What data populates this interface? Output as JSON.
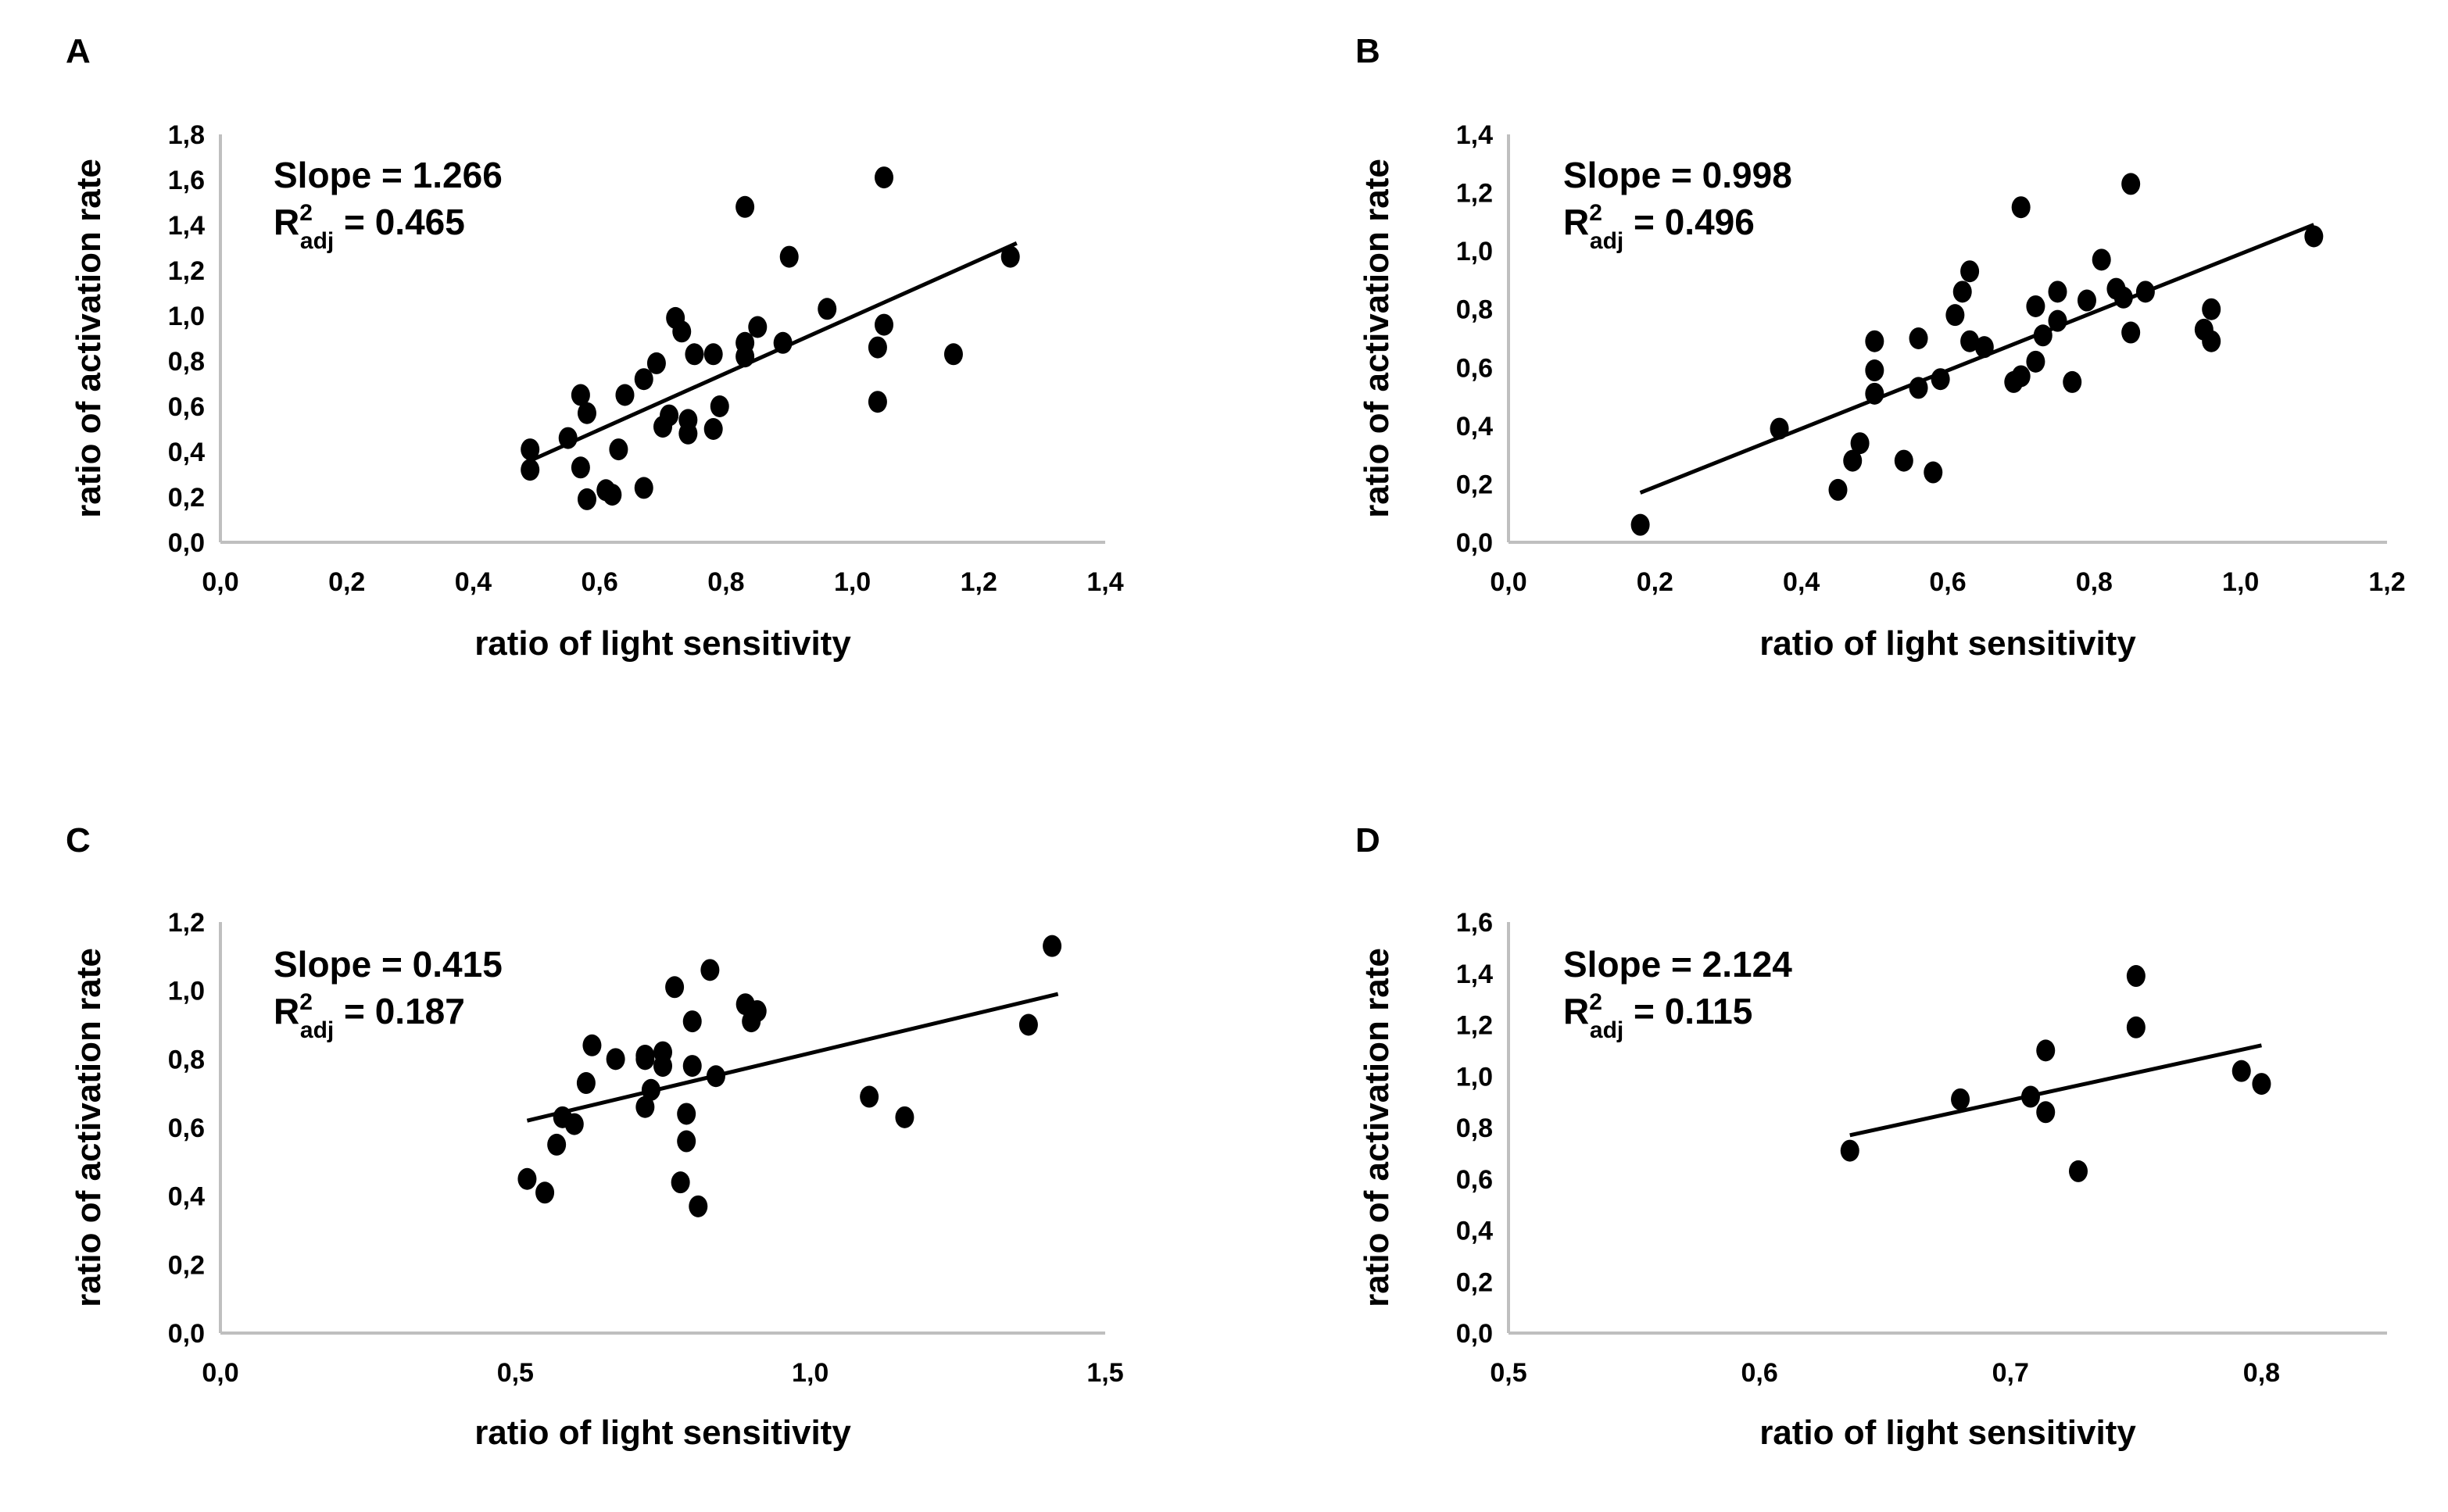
{
  "figure": {
    "panels": [
      "A",
      "B",
      "C",
      "D"
    ]
  },
  "chart_data": [
    {
      "panel": "A",
      "type": "scatter",
      "title": "",
      "xlabel": "ratio of light sensitivity",
      "ylabel": "ratio of activation rate",
      "xlim": [
        0,
        1.4
      ],
      "ylim": [
        0,
        1.8
      ],
      "xticks": [
        0,
        0.2,
        0.4,
        0.6,
        0.8,
        1.0,
        1.2,
        1.4
      ],
      "yticks": [
        0,
        0.2,
        0.4,
        0.6,
        0.8,
        1.0,
        1.2,
        1.4,
        1.6,
        1.8
      ],
      "xtick_labels": [
        "0,0",
        "0,2",
        "0,4",
        "0,6",
        "0,8",
        "1,0",
        "1,2",
        "1,4"
      ],
      "ytick_labels": [
        "0,0",
        "0,2",
        "0,4",
        "0,6",
        "0,8",
        "1,0",
        "1,2",
        "1,4",
        "1,6",
        "1,8"
      ],
      "annotation": {
        "slope_label": "Slope = 1.266",
        "r2_prefix": "R",
        "r2_sup": "2",
        "r2_sub": "adj",
        "r2_value": " = 0.465"
      },
      "slope": 1.266,
      "r2_adj": 0.465,
      "fit_line": {
        "x": [
          0.49,
          1.26
        ],
        "y": [
          0.36,
          1.32
        ]
      },
      "grid": false,
      "points": [
        [
          0.49,
          0.41
        ],
        [
          0.49,
          0.32
        ],
        [
          0.55,
          0.46
        ],
        [
          0.57,
          0.65
        ],
        [
          0.58,
          0.57
        ],
        [
          0.57,
          0.33
        ],
        [
          0.58,
          0.19
        ],
        [
          0.61,
          0.23
        ],
        [
          0.62,
          0.21
        ],
        [
          0.63,
          0.41
        ],
        [
          0.64,
          0.65
        ],
        [
          0.67,
          0.24
        ],
        [
          0.67,
          0.72
        ],
        [
          0.69,
          0.79
        ],
        [
          0.7,
          0.51
        ],
        [
          0.71,
          0.56
        ],
        [
          0.72,
          0.99
        ],
        [
          0.73,
          0.93
        ],
        [
          0.74,
          0.54
        ],
        [
          0.74,
          0.48
        ],
        [
          0.75,
          0.83
        ],
        [
          0.78,
          0.83
        ],
        [
          0.78,
          0.5
        ],
        [
          0.79,
          0.6
        ],
        [
          0.83,
          1.48
        ],
        [
          0.83,
          0.88
        ],
        [
          0.83,
          0.82
        ],
        [
          0.85,
          0.95
        ],
        [
          0.89,
          0.88
        ],
        [
          0.9,
          1.26
        ],
        [
          0.96,
          1.03
        ],
        [
          1.04,
          0.86
        ],
        [
          1.05,
          0.96
        ],
        [
          1.04,
          0.62
        ],
        [
          1.05,
          1.61
        ],
        [
          1.16,
          0.83
        ],
        [
          1.25,
          1.26
        ]
      ]
    },
    {
      "panel": "B",
      "type": "scatter",
      "title": "",
      "xlabel": "ratio of light sensitivity",
      "ylabel": "ratio of activation rate",
      "xlim": [
        0,
        1.2
      ],
      "ylim": [
        0,
        1.4
      ],
      "xticks": [
        0,
        0.2,
        0.4,
        0.6,
        0.8,
        1.0,
        1.2
      ],
      "yticks": [
        0,
        0.2,
        0.4,
        0.6,
        0.8,
        1.0,
        1.2,
        1.4
      ],
      "xtick_labels": [
        "0,0",
        "0,2",
        "0,4",
        "0,6",
        "0,8",
        "1,0",
        "1,2"
      ],
      "ytick_labels": [
        "0,0",
        "0,2",
        "0,4",
        "0,6",
        "0,8",
        "1,0",
        "1,2",
        "1,4"
      ],
      "annotation": {
        "slope_label": "Slope = 0.998",
        "r2_prefix": "R",
        "r2_sup": "2",
        "r2_sub": "adj",
        "r2_value": " = 0.496"
      },
      "slope": 0.998,
      "r2_adj": 0.496,
      "fit_line": {
        "x": [
          0.18,
          1.1
        ],
        "y": [
          0.17,
          1.09
        ]
      },
      "grid": false,
      "points": [
        [
          0.18,
          0.06
        ],
        [
          0.37,
          0.39
        ],
        [
          0.45,
          0.18
        ],
        [
          0.47,
          0.28
        ],
        [
          0.48,
          0.34
        ],
        [
          0.5,
          0.69
        ],
        [
          0.5,
          0.59
        ],
        [
          0.5,
          0.51
        ],
        [
          0.54,
          0.28
        ],
        [
          0.56,
          0.7
        ],
        [
          0.56,
          0.53
        ],
        [
          0.58,
          0.24
        ],
        [
          0.59,
          0.56
        ],
        [
          0.61,
          0.78
        ],
        [
          0.62,
          0.86
        ],
        [
          0.63,
          0.69
        ],
        [
          0.63,
          0.93
        ],
        [
          0.65,
          0.67
        ],
        [
          0.69,
          0.55
        ],
        [
          0.7,
          1.15
        ],
        [
          0.7,
          0.57
        ],
        [
          0.72,
          0.81
        ],
        [
          0.72,
          0.62
        ],
        [
          0.73,
          0.71
        ],
        [
          0.75,
          0.86
        ],
        [
          0.75,
          0.76
        ],
        [
          0.77,
          0.55
        ],
        [
          0.79,
          0.83
        ],
        [
          0.81,
          0.97
        ],
        [
          0.83,
          0.87
        ],
        [
          0.84,
          0.84
        ],
        [
          0.85,
          1.23
        ],
        [
          0.85,
          0.72
        ],
        [
          0.87,
          0.86
        ],
        [
          0.96,
          0.8
        ],
        [
          0.95,
          0.73
        ],
        [
          0.96,
          0.69
        ],
        [
          1.1,
          1.05
        ]
      ]
    },
    {
      "panel": "C",
      "type": "scatter",
      "title": "",
      "xlabel": "ratio of light sensitivity",
      "ylabel": "ratio of activation rate",
      "xlim": [
        0,
        1.5
      ],
      "ylim": [
        0,
        1.2
      ],
      "xticks": [
        0,
        0.5,
        1.0,
        1.5
      ],
      "yticks": [
        0,
        0.2,
        0.4,
        0.6,
        0.8,
        1.0,
        1.2
      ],
      "xtick_labels": [
        "0,0",
        "0,5",
        "1,0",
        "1,5"
      ],
      "ytick_labels": [
        "0,0",
        "0,2",
        "0,4",
        "0,6",
        "0,8",
        "1,0",
        "1,2"
      ],
      "annotation": {
        "slope_label": "Slope = 0.415",
        "r2_prefix": "R",
        "r2_sup": "2",
        "r2_sub": "adj",
        "r2_value": "  = 0.187"
      },
      "slope": 0.415,
      "r2_adj": 0.187,
      "fit_line": {
        "x": [
          0.52,
          1.42
        ],
        "y": [
          0.62,
          0.99
        ]
      },
      "grid": false,
      "points": [
        [
          0.52,
          0.45
        ],
        [
          0.55,
          0.41
        ],
        [
          0.57,
          0.55
        ],
        [
          0.58,
          0.63
        ],
        [
          0.6,
          0.61
        ],
        [
          0.62,
          0.73
        ],
        [
          0.63,
          0.84
        ],
        [
          0.67,
          0.8
        ],
        [
          0.72,
          0.66
        ],
        [
          0.72,
          0.8
        ],
        [
          0.72,
          0.81
        ],
        [
          0.73,
          0.71
        ],
        [
          0.75,
          0.82
        ],
        [
          0.75,
          0.78
        ],
        [
          0.77,
          1.01
        ],
        [
          0.78,
          0.44
        ],
        [
          0.79,
          0.64
        ],
        [
          0.79,
          0.56
        ],
        [
          0.8,
          0.78
        ],
        [
          0.8,
          0.91
        ],
        [
          0.81,
          0.37
        ],
        [
          0.83,
          1.06
        ],
        [
          0.84,
          0.75
        ],
        [
          0.89,
          0.96
        ],
        [
          0.9,
          0.91
        ],
        [
          0.91,
          0.94
        ],
        [
          1.1,
          0.69
        ],
        [
          1.16,
          0.63
        ],
        [
          1.37,
          0.9
        ],
        [
          1.41,
          1.13
        ]
      ]
    },
    {
      "panel": "D",
      "type": "scatter",
      "title": "",
      "xlabel": "ratio of light sensitivity",
      "ylabel": "ratio of activation rate",
      "xlim": [
        0.5,
        0.85
      ],
      "ylim": [
        0,
        1.6
      ],
      "xticks": [
        0.5,
        0.6,
        0.7,
        0.8
      ],
      "yticks": [
        0,
        0.2,
        0.4,
        0.6,
        0.8,
        1.0,
        1.2,
        1.4,
        1.6
      ],
      "xtick_labels": [
        "0,5",
        "0,6",
        "0,7",
        "0,8"
      ],
      "ytick_labels": [
        "0,0",
        "0,2",
        "0,4",
        "0,6",
        "0,8",
        "1,0",
        "1,2",
        "1,4",
        "1,6"
      ],
      "annotation": {
        "slope_label": "Slope = 2.124",
        "r2_prefix": "R",
        "r2_sup": "2",
        "r2_sub": "adj",
        "r2_value": " = 0.115"
      },
      "slope": 2.124,
      "r2_adj": 0.115,
      "fit_line": {
        "x": [
          0.636,
          0.8
        ],
        "y": [
          0.77,
          1.12
        ]
      },
      "grid": false,
      "points": [
        [
          0.636,
          0.71
        ],
        [
          0.68,
          0.91
        ],
        [
          0.708,
          0.92
        ],
        [
          0.714,
          1.1
        ],
        [
          0.714,
          0.86
        ],
        [
          0.727,
          0.63
        ],
        [
          0.75,
          1.39
        ],
        [
          0.75,
          1.19
        ],
        [
          0.792,
          1.02
        ],
        [
          0.8,
          0.97
        ]
      ]
    }
  ]
}
